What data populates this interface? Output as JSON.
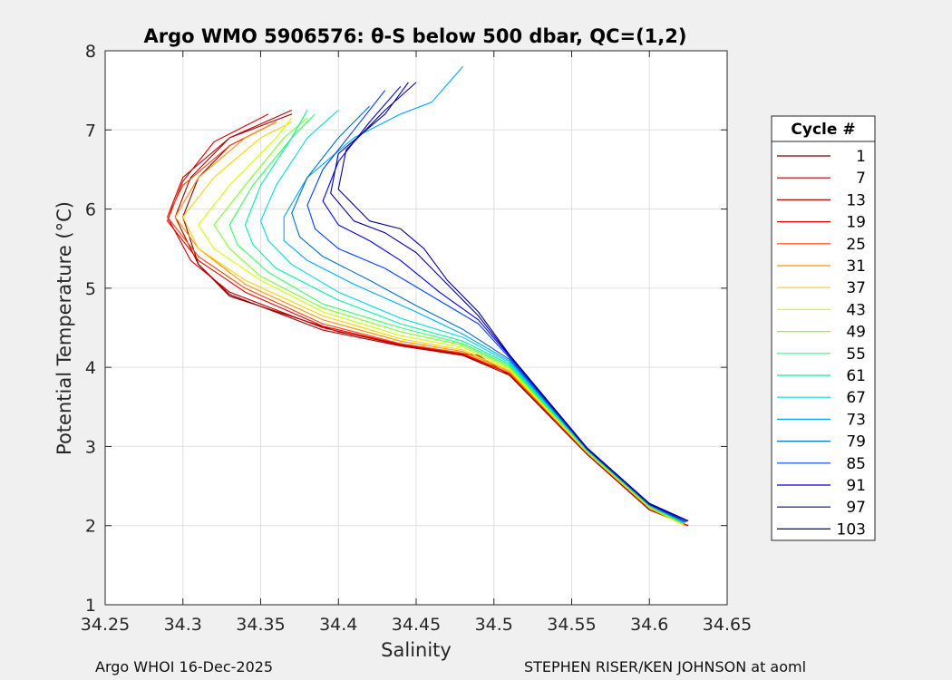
{
  "chart_data": {
    "type": "line",
    "title": "Argo WMO 5906576: θ-S below 500 dbar,  QC=(1,2)",
    "xlabel": "Salinity",
    "ylabel": "Potential Temperature (°C)",
    "xlim": [
      34.25,
      34.65
    ],
    "ylim": [
      1,
      8
    ],
    "xticks": [
      "34.25",
      "34.3",
      "34.35",
      "34.4",
      "34.45",
      "34.5",
      "34.55",
      "34.6",
      "34.65"
    ],
    "xtick_values": [
      34.25,
      34.3,
      34.35,
      34.4,
      34.45,
      34.5,
      34.55,
      34.6,
      34.65
    ],
    "yticks": [
      "1",
      "2",
      "3",
      "4",
      "5",
      "6",
      "7",
      "8"
    ],
    "ytick_values": [
      1,
      2,
      3,
      4,
      5,
      6,
      7,
      8
    ],
    "grid": true,
    "legend_title": "Cycle #",
    "legend_position": "right",
    "series": [
      {
        "name": "1",
        "color": "#800000",
        "points": [
          [
            34.625,
            2.0
          ],
          [
            34.6,
            2.2
          ],
          [
            34.56,
            2.9
          ],
          [
            34.51,
            3.9
          ],
          [
            34.49,
            4.15
          ],
          [
            34.45,
            4.25
          ],
          [
            34.4,
            4.45
          ],
          [
            34.33,
            4.9
          ],
          [
            34.31,
            5.3
          ],
          [
            34.3,
            5.9
          ],
          [
            34.31,
            6.4
          ],
          [
            34.33,
            6.8
          ],
          [
            34.36,
            7.1
          ]
        ]
      },
      {
        "name": "7",
        "color": "#a00000",
        "points": [
          [
            34.625,
            2.0
          ],
          [
            34.6,
            2.2
          ],
          [
            34.56,
            2.9
          ],
          [
            34.51,
            3.9
          ],
          [
            34.48,
            4.15
          ],
          [
            34.44,
            4.27
          ],
          [
            34.39,
            4.47
          ],
          [
            34.33,
            4.92
          ],
          [
            34.31,
            5.3
          ],
          [
            34.295,
            5.9
          ],
          [
            34.305,
            6.4
          ],
          [
            34.33,
            6.9
          ],
          [
            34.37,
            7.2
          ]
        ]
      },
      {
        "name": "13",
        "color": "#c00000",
        "points": [
          [
            34.624,
            2.0
          ],
          [
            34.6,
            2.22
          ],
          [
            34.56,
            2.92
          ],
          [
            34.51,
            3.92
          ],
          [
            34.48,
            4.16
          ],
          [
            34.44,
            4.28
          ],
          [
            34.39,
            4.5
          ],
          [
            34.33,
            4.95
          ],
          [
            34.305,
            5.35
          ],
          [
            34.29,
            5.9
          ],
          [
            34.3,
            6.4
          ],
          [
            34.33,
            6.9
          ],
          [
            34.37,
            7.25
          ]
        ]
      },
      {
        "name": "19",
        "color": "#e00000",
        "points": [
          [
            34.624,
            2.0
          ],
          [
            34.6,
            2.22
          ],
          [
            34.56,
            2.92
          ],
          [
            34.51,
            3.92
          ],
          [
            34.48,
            4.17
          ],
          [
            34.44,
            4.29
          ],
          [
            34.39,
            4.52
          ],
          [
            34.34,
            4.95
          ],
          [
            34.31,
            5.35
          ],
          [
            34.29,
            5.85
          ],
          [
            34.3,
            6.35
          ],
          [
            34.32,
            6.85
          ],
          [
            34.355,
            7.2
          ]
        ]
      },
      {
        "name": "25",
        "color": "#ff4000",
        "points": [
          [
            34.624,
            2.0
          ],
          [
            34.6,
            2.22
          ],
          [
            34.56,
            2.92
          ],
          [
            34.51,
            3.93
          ],
          [
            34.48,
            4.18
          ],
          [
            34.44,
            4.3
          ],
          [
            34.39,
            4.55
          ],
          [
            34.34,
            5.0
          ],
          [
            34.31,
            5.4
          ],
          [
            34.29,
            5.9
          ],
          [
            34.3,
            6.3
          ],
          [
            34.33,
            6.8
          ],
          [
            34.36,
            7.1
          ]
        ]
      },
      {
        "name": "31",
        "color": "#ff9000",
        "points": [
          [
            34.623,
            2.0
          ],
          [
            34.6,
            2.22
          ],
          [
            34.56,
            2.92
          ],
          [
            34.51,
            3.95
          ],
          [
            34.48,
            4.2
          ],
          [
            34.44,
            4.33
          ],
          [
            34.39,
            4.6
          ],
          [
            34.34,
            5.05
          ],
          [
            34.31,
            5.5
          ],
          [
            34.295,
            5.9
          ],
          [
            34.31,
            6.4
          ],
          [
            34.34,
            6.9
          ],
          [
            34.36,
            7.1
          ]
        ]
      },
      {
        "name": "37",
        "color": "#ffd000",
        "points": [
          [
            34.623,
            2.0
          ],
          [
            34.6,
            2.22
          ],
          [
            34.56,
            2.92
          ],
          [
            34.51,
            3.96
          ],
          [
            34.48,
            4.22
          ],
          [
            34.44,
            4.36
          ],
          [
            34.39,
            4.65
          ],
          [
            34.34,
            5.1
          ],
          [
            34.31,
            5.5
          ],
          [
            34.3,
            5.9
          ],
          [
            34.32,
            6.4
          ],
          [
            34.35,
            6.9
          ],
          [
            34.37,
            7.1
          ]
        ]
      },
      {
        "name": "43",
        "color": "#d0ff00",
        "points": [
          [
            34.622,
            2.02
          ],
          [
            34.6,
            2.24
          ],
          [
            34.56,
            2.94
          ],
          [
            34.51,
            3.98
          ],
          [
            34.48,
            4.25
          ],
          [
            34.44,
            4.4
          ],
          [
            34.39,
            4.7
          ],
          [
            34.35,
            5.1
          ],
          [
            34.32,
            5.5
          ],
          [
            34.31,
            5.8
          ],
          [
            34.33,
            6.3
          ],
          [
            34.36,
            6.9
          ],
          [
            34.37,
            7.15
          ]
        ]
      },
      {
        "name": "49",
        "color": "#80ff20",
        "points": [
          [
            34.622,
            2.02
          ],
          [
            34.6,
            2.24
          ],
          [
            34.56,
            2.94
          ],
          [
            34.51,
            4.0
          ],
          [
            34.48,
            4.28
          ],
          [
            34.44,
            4.45
          ],
          [
            34.39,
            4.75
          ],
          [
            34.35,
            5.15
          ],
          [
            34.33,
            5.5
          ],
          [
            34.32,
            5.8
          ],
          [
            34.34,
            6.3
          ],
          [
            34.365,
            6.9
          ],
          [
            34.38,
            7.15
          ]
        ]
      },
      {
        "name": "55",
        "color": "#30ff60",
        "points": [
          [
            34.622,
            2.03
          ],
          [
            34.6,
            2.25
          ],
          [
            34.56,
            2.95
          ],
          [
            34.51,
            4.02
          ],
          [
            34.48,
            4.3
          ],
          [
            34.44,
            4.5
          ],
          [
            34.39,
            4.8
          ],
          [
            34.355,
            5.2
          ],
          [
            34.335,
            5.55
          ],
          [
            34.33,
            5.8
          ],
          [
            34.345,
            6.3
          ],
          [
            34.37,
            6.9
          ],
          [
            34.385,
            7.2
          ]
        ]
      },
      {
        "name": "61",
        "color": "#00f0a0",
        "points": [
          [
            34.622,
            2.03
          ],
          [
            34.6,
            2.25
          ],
          [
            34.56,
            2.95
          ],
          [
            34.51,
            4.04
          ],
          [
            34.48,
            4.33
          ],
          [
            34.44,
            4.55
          ],
          [
            34.4,
            4.85
          ],
          [
            34.36,
            5.25
          ],
          [
            34.345,
            5.55
          ],
          [
            34.34,
            5.8
          ],
          [
            34.35,
            6.3
          ],
          [
            34.37,
            6.9
          ],
          [
            34.38,
            7.25
          ]
        ]
      },
      {
        "name": "67",
        "color": "#00d8e0",
        "points": [
          [
            34.622,
            2.04
          ],
          [
            34.6,
            2.26
          ],
          [
            34.56,
            2.96
          ],
          [
            34.51,
            4.06
          ],
          [
            34.48,
            4.38
          ],
          [
            34.44,
            4.62
          ],
          [
            34.4,
            4.95
          ],
          [
            34.37,
            5.3
          ],
          [
            34.355,
            5.6
          ],
          [
            34.35,
            5.85
          ],
          [
            34.36,
            6.3
          ],
          [
            34.38,
            6.9
          ],
          [
            34.4,
            7.25
          ]
        ]
      },
      {
        "name": "73",
        "color": "#00a8ff",
        "points": [
          [
            34.623,
            2.04
          ],
          [
            34.6,
            2.26
          ],
          [
            34.56,
            2.96
          ],
          [
            34.51,
            4.08
          ],
          [
            34.48,
            4.42
          ],
          [
            34.45,
            4.7
          ],
          [
            34.41,
            5.05
          ],
          [
            34.38,
            5.35
          ],
          [
            34.365,
            5.6
          ],
          [
            34.365,
            5.9
          ],
          [
            34.38,
            6.4
          ],
          [
            34.41,
            6.9
          ],
          [
            34.44,
            7.2
          ],
          [
            34.46,
            7.35
          ],
          [
            34.48,
            7.8
          ]
        ]
      },
      {
        "name": "79",
        "color": "#0070c0",
        "points": [
          [
            34.623,
            2.04
          ],
          [
            34.6,
            2.26
          ],
          [
            34.56,
            2.96
          ],
          [
            34.51,
            4.1
          ],
          [
            34.48,
            4.48
          ],
          [
            34.45,
            4.78
          ],
          [
            34.42,
            5.1
          ],
          [
            34.39,
            5.4
          ],
          [
            34.375,
            5.65
          ],
          [
            34.37,
            5.95
          ],
          [
            34.38,
            6.4
          ],
          [
            34.4,
            6.9
          ],
          [
            34.42,
            7.3
          ]
        ]
      },
      {
        "name": "85",
        "color": "#0040ff",
        "points": [
          [
            34.624,
            2.05
          ],
          [
            34.6,
            2.27
          ],
          [
            34.56,
            2.97
          ],
          [
            34.51,
            4.12
          ],
          [
            34.49,
            4.55
          ],
          [
            34.46,
            4.9
          ],
          [
            34.43,
            5.25
          ],
          [
            34.4,
            5.5
          ],
          [
            34.385,
            5.75
          ],
          [
            34.38,
            6.05
          ],
          [
            34.39,
            6.5
          ],
          [
            34.41,
            7.0
          ],
          [
            34.43,
            7.5
          ]
        ]
      },
      {
        "name": "91",
        "color": "#0000e0",
        "points": [
          [
            34.624,
            2.05
          ],
          [
            34.6,
            2.27
          ],
          [
            34.56,
            2.97
          ],
          [
            34.51,
            4.14
          ],
          [
            34.49,
            4.6
          ],
          [
            34.465,
            4.95
          ],
          [
            34.44,
            5.35
          ],
          [
            34.42,
            5.6
          ],
          [
            34.4,
            5.8
          ],
          [
            34.39,
            6.1
          ],
          [
            34.4,
            6.6
          ],
          [
            34.42,
            7.1
          ],
          [
            34.44,
            7.55
          ]
        ]
      },
      {
        "name": "97",
        "color": "#0000a0",
        "points": [
          [
            34.625,
            2.06
          ],
          [
            34.6,
            2.28
          ],
          [
            34.56,
            2.98
          ],
          [
            34.51,
            4.15
          ],
          [
            34.49,
            4.65
          ],
          [
            34.47,
            5.05
          ],
          [
            34.45,
            5.45
          ],
          [
            34.43,
            5.7
          ],
          [
            34.41,
            5.85
          ],
          [
            34.395,
            6.2
          ],
          [
            34.4,
            6.7
          ],
          [
            34.43,
            7.2
          ],
          [
            34.445,
            7.6
          ]
        ]
      },
      {
        "name": "103",
        "color": "#000090",
        "points": [
          [
            34.625,
            2.06
          ],
          [
            34.6,
            2.28
          ],
          [
            34.56,
            2.98
          ],
          [
            34.51,
            4.16
          ],
          [
            34.49,
            4.7
          ],
          [
            34.47,
            5.1
          ],
          [
            34.455,
            5.5
          ],
          [
            34.44,
            5.75
          ],
          [
            34.42,
            5.85
          ],
          [
            34.4,
            6.25
          ],
          [
            34.405,
            6.75
          ],
          [
            34.43,
            7.25
          ],
          [
            34.45,
            7.6
          ]
        ]
      }
    ]
  },
  "footer": {
    "left": "Argo WHOI 16-Dec-2025",
    "right": "STEPHEN RISER/KEN JOHNSON at aoml"
  }
}
